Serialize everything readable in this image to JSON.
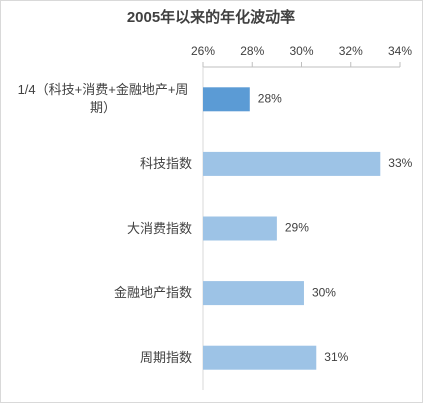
{
  "chart_data": {
    "type": "barh",
    "title": "2005年以来的年化波动率",
    "categories": [
      "1/4（科技+消费+金融地产+周期）",
      "科技指数",
      "大消费指数",
      "金融地产指数",
      "周期指数"
    ],
    "values": [
      27.9,
      33.2,
      29.0,
      30.1,
      30.6
    ],
    "value_labels": [
      "28%",
      "33%",
      "29%",
      "30%",
      "31%"
    ],
    "colors": [
      "#5b9bd5",
      "#9dc3e6",
      "#9dc3e6",
      "#9dc3e6",
      "#9dc3e6"
    ],
    "xlim": [
      26,
      34
    ],
    "xticks": [
      {
        "value": 26,
        "label": "26%"
      },
      {
        "value": 28,
        "label": "28%"
      },
      {
        "value": 30,
        "label": "30%"
      },
      {
        "value": 32,
        "label": "32%"
      },
      {
        "value": 34,
        "label": "34%"
      }
    ],
    "grid": false
  }
}
